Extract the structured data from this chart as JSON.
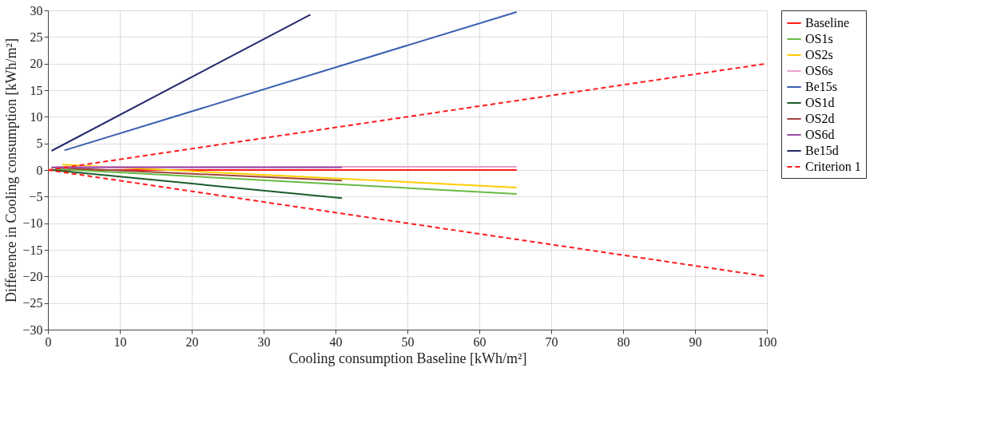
{
  "chart_data": {
    "type": "line",
    "xlabel": "Cooling consumption Baseline [kWh/m²]",
    "ylabel": "Difference in Cooling consumption [kWh/m²]",
    "xlim": [
      0,
      100
    ],
    "xticks": [
      0,
      10,
      20,
      30,
      40,
      50,
      60,
      70,
      80,
      90,
      100
    ],
    "ylim": [
      -30,
      30
    ],
    "yticks": [
      -30,
      -25,
      -20,
      -15,
      -10,
      -5,
      0,
      5,
      10,
      15,
      20,
      25,
      30
    ],
    "grid": true,
    "legend": "right",
    "line_style": "solid",
    "series": [
      {
        "name": "Baseline",
        "color": "#ff1a1a",
        "x": [
          0,
          65.2
        ],
        "values": [
          0,
          0
        ]
      },
      {
        "name": "OS1s",
        "color": "#66bb44",
        "x": [
          1,
          65.2
        ],
        "values": [
          0.2,
          -4.5
        ]
      },
      {
        "name": "OS2s",
        "color": "#ffcc00",
        "x": [
          2,
          65.2
        ],
        "values": [
          1.0,
          -3.3
        ]
      },
      {
        "name": "OS6s",
        "color": "#eaa0cc",
        "x": [
          1,
          65.2
        ],
        "values": [
          0.6,
          0.6
        ]
      },
      {
        "name": "Be15s",
        "color": "#3a5fb0",
        "x": [
          2.3,
          65.2
        ],
        "values": [
          3.7,
          29.7
        ]
      },
      {
        "name": "OS1d",
        "color": "#1a5c2a",
        "x": [
          0.5,
          40.9
        ],
        "values": [
          0,
          -5.3
        ]
      },
      {
        "name": "OS2d",
        "color": "#a0453a",
        "x": [
          0.5,
          40.9
        ],
        "values": [
          0.5,
          -2.0
        ]
      },
      {
        "name": "OS6d",
        "color": "#9b4ea8",
        "x": [
          0.5,
          40.9
        ],
        "values": [
          0.5,
          0.5
        ]
      },
      {
        "name": "Be15d",
        "color": "#262a6e",
        "x": [
          0.5,
          36.5
        ],
        "values": [
          3.6,
          29.2
        ]
      },
      {
        "name": "Criterion 1",
        "color": "#ff1a1a",
        "line_style": "dashed",
        "x": [
          0,
          100
        ],
        "values": [
          0,
          20
        ]
      },
      {
        "color": "#ff1a1a",
        "line_style": "dashed",
        "x": [
          0,
          100
        ],
        "values": [
          0,
          -20
        ]
      }
    ]
  }
}
